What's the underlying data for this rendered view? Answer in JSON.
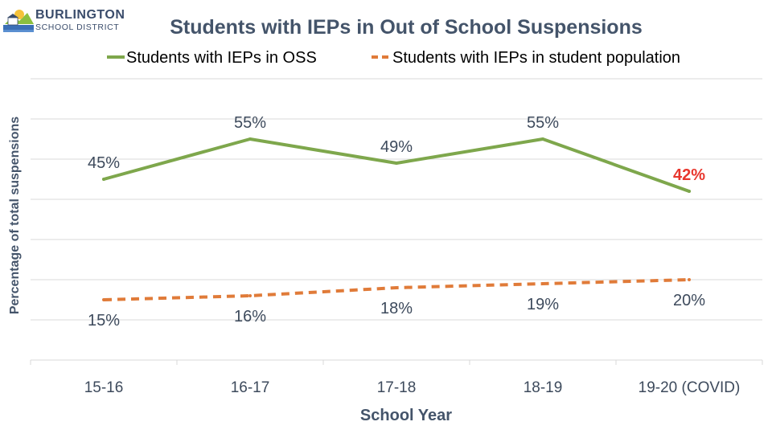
{
  "logo": {
    "line1": "BURLINGTON",
    "line2": "SCHOOL DISTRICT"
  },
  "chart_data": {
    "type": "line",
    "title": "Students with IEPs in Out of School Suspensions",
    "xlabel": "School Year",
    "ylabel": "Percentage of total suspensions",
    "categories": [
      "15-16",
      "16-17",
      "17-18",
      "18-19",
      "19-20 (COVID)"
    ],
    "ylim": [
      0,
      70
    ],
    "grid": true,
    "legend_position": "top",
    "series": [
      {
        "name": "Students with IEPs in OSS",
        "values": [
          45,
          55,
          49,
          55,
          42
        ],
        "labels": [
          "45%",
          "55%",
          "49%",
          "55%",
          "42%"
        ],
        "color": "#7ea74c",
        "dash": false,
        "label_colors": [
          "#3d4a5c",
          "#3d4a5c",
          "#3d4a5c",
          "#3d4a5c",
          "#e8362d"
        ]
      },
      {
        "name": "Students with IEPs in student population",
        "values": [
          15,
          16,
          18,
          19,
          20
        ],
        "labels": [
          "15%",
          "16%",
          "18%",
          "19%",
          "20%"
        ],
        "color": "#e07b39",
        "dash": true,
        "label_colors": [
          "#3d4a5c",
          "#3d4a5c",
          "#3d4a5c",
          "#3d4a5c",
          "#3d4a5c"
        ]
      }
    ]
  }
}
